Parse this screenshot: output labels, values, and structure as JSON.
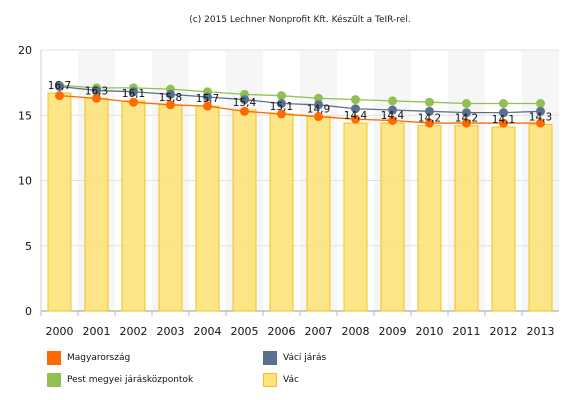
{
  "credit": "(c) 2015 Lechner Nonprofit Kft. Készült a TeIR-rel.",
  "chart_data": {
    "type": "bar",
    "categories": [
      "2000",
      "2001",
      "2002",
      "2003",
      "2004",
      "2005",
      "2006",
      "2007",
      "2008",
      "2009",
      "2010",
      "2011",
      "2012",
      "2013"
    ],
    "ylim": [
      0,
      20
    ],
    "yticks": [
      0,
      5,
      10,
      15,
      20
    ],
    "grid": true,
    "legend_position": "bottom",
    "series": [
      {
        "name": "Vác",
        "kind": "bar",
        "color": "#fde37a",
        "edge": "#f2c21a",
        "values": [
          16.7,
          16.3,
          16.1,
          15.8,
          15.7,
          15.4,
          15.1,
          14.9,
          14.4,
          14.4,
          14.2,
          14.2,
          14.1,
          14.3
        ],
        "labels": [
          "16,7",
          "16,3",
          "16,1",
          "15,8",
          "15,7",
          "15,4",
          "15,1",
          "14,9",
          "14,4",
          "14,4",
          "14,2",
          "14,2",
          "14,1",
          "14,3"
        ]
      },
      {
        "name": "Magyarország",
        "kind": "line",
        "color": "#ff6a00",
        "values": [
          16.5,
          16.3,
          16.0,
          15.8,
          15.7,
          15.3,
          15.1,
          14.9,
          14.7,
          14.6,
          14.4,
          14.4,
          14.4,
          14.4
        ]
      },
      {
        "name": "Váci járás",
        "kind": "line",
        "color": "#5a7091",
        "values": [
          17.2,
          16.9,
          16.8,
          16.6,
          16.4,
          16.2,
          15.9,
          15.8,
          15.5,
          15.4,
          15.3,
          15.2,
          15.2,
          15.3
        ]
      },
      {
        "name": "Pest megyei járásközpontok",
        "kind": "line",
        "color": "#92c050",
        "values": [
          17.3,
          17.1,
          17.1,
          17.0,
          16.8,
          16.6,
          16.5,
          16.3,
          16.2,
          16.1,
          16.0,
          15.9,
          15.9,
          15.9
        ]
      }
    ],
    "legend": [
      {
        "name": "Magyarország",
        "color": "#ff6a00"
      },
      {
        "name": "Váci járás",
        "color": "#5a7091"
      },
      {
        "name": "Pest megyei járásközpontok",
        "color": "#92c050"
      },
      {
        "name": "Vác",
        "color": "#fde37a"
      }
    ]
  }
}
